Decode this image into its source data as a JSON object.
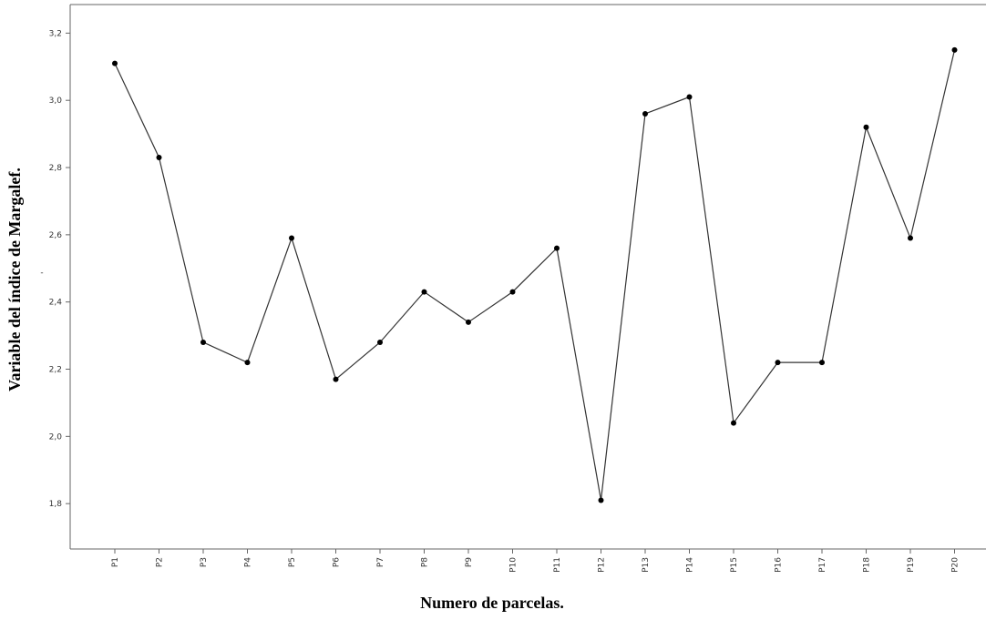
{
  "chart_data": {
    "type": "line",
    "title": "",
    "xlabel": "Numero de parcelas.",
    "ylabel": "Variable del índice de Margalef.",
    "stray_mark": "-",
    "categories": [
      "P1",
      "P2",
      "P3",
      "P4",
      "P5",
      "P6",
      "P7",
      "P8",
      "P9",
      "P10",
      "P11",
      "P12",
      "P13",
      "P14",
      "P15",
      "P16",
      "P17",
      "P18",
      "P19",
      "P20"
    ],
    "series": [
      {
        "values": [
          3.11,
          2.83,
          2.28,
          2.22,
          2.59,
          2.17,
          2.28,
          2.43,
          2.34,
          2.43,
          2.56,
          1.81,
          2.96,
          3.01,
          2.04,
          2.22,
          2.22,
          2.92,
          2.59,
          3.15
        ]
      }
    ],
    "yticks": [
      {
        "value": 1.8,
        "label": "1,8"
      },
      {
        "value": 2.0,
        "label": "2,0"
      },
      {
        "value": 2.2,
        "label": "2,2"
      },
      {
        "value": 2.4,
        "label": "2,4"
      },
      {
        "value": 2.6,
        "label": "2,6"
      },
      {
        "value": 2.8,
        "label": "2,8"
      },
      {
        "value": 3.0,
        "label": "3,0"
      },
      {
        "value": 3.2,
        "label": "3,2"
      }
    ],
    "ylim": [
      1.665,
      3.285
    ],
    "grid": false,
    "legend": "none",
    "line_color": "#333333",
    "marker_color": "#000000"
  }
}
